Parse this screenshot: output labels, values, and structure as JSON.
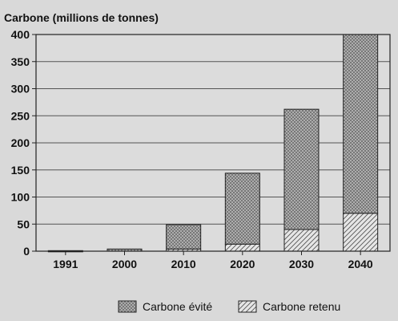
{
  "chart_data": {
    "type": "bar",
    "stacked": true,
    "ylabel": "Carbone (millions de tonnes)",
    "categories": [
      "1991",
      "2000",
      "2010",
      "2020",
      "2030",
      "2040"
    ],
    "series": [
      {
        "name": "Carbone retenu",
        "pattern": "hatch",
        "values": [
          0,
          0,
          4,
          13,
          40,
          70
        ]
      },
      {
        "name": "Carbone évité",
        "pattern": "crosshatch",
        "values": [
          1,
          4,
          45,
          131,
          222,
          330
        ]
      }
    ],
    "ylim": [
      0,
      400
    ],
    "yticks": [
      0,
      50,
      100,
      150,
      200,
      250,
      300,
      350,
      400
    ],
    "grid": true,
    "legend_position": "bottom-right",
    "legend_order": [
      "Carbone évité",
      "Carbone retenu"
    ],
    "colors": {
      "background": "#d9d9d9",
      "plot_background": "#dcdcdc",
      "bar_fill": "#b8b8b8",
      "stroke": "#222222"
    }
  }
}
